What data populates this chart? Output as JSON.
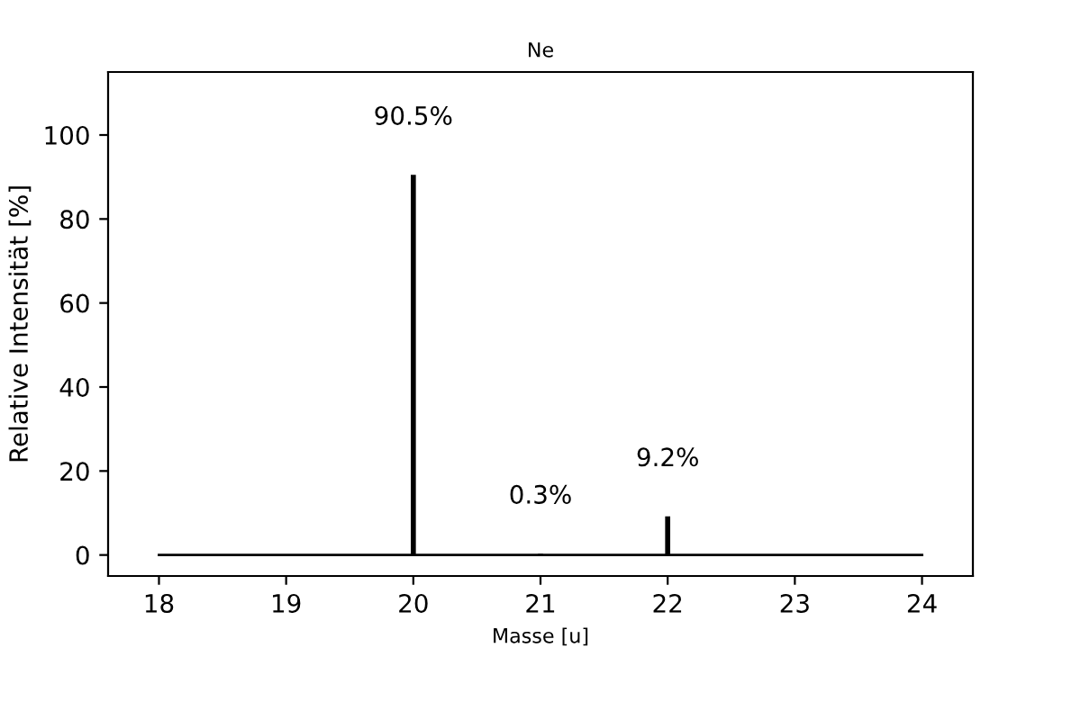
{
  "chart_data": {
    "type": "bar",
    "title": "Ne",
    "xlabel": "Masse [u]",
    "ylabel": "Relative Intensität [%]",
    "xlim": [
      17.6,
      24.4
    ],
    "xticks": [
      18,
      19,
      20,
      21,
      22,
      23,
      24
    ],
    "ylim": [
      -5,
      115
    ],
    "yticks": [
      0,
      20,
      40,
      60,
      80,
      100
    ],
    "series": [
      {
        "color": "#000000",
        "x": [
          20,
          21,
          22
        ],
        "values": [
          90.5,
          0.3,
          9.2
        ],
        "value_labels": [
          "90.5%",
          "0.3%",
          "9.2%"
        ]
      },
      {
        "type": "line",
        "color": "#000000",
        "x": [
          18,
          24
        ],
        "values": [
          0,
          0
        ]
      }
    ],
    "grid": false
  }
}
